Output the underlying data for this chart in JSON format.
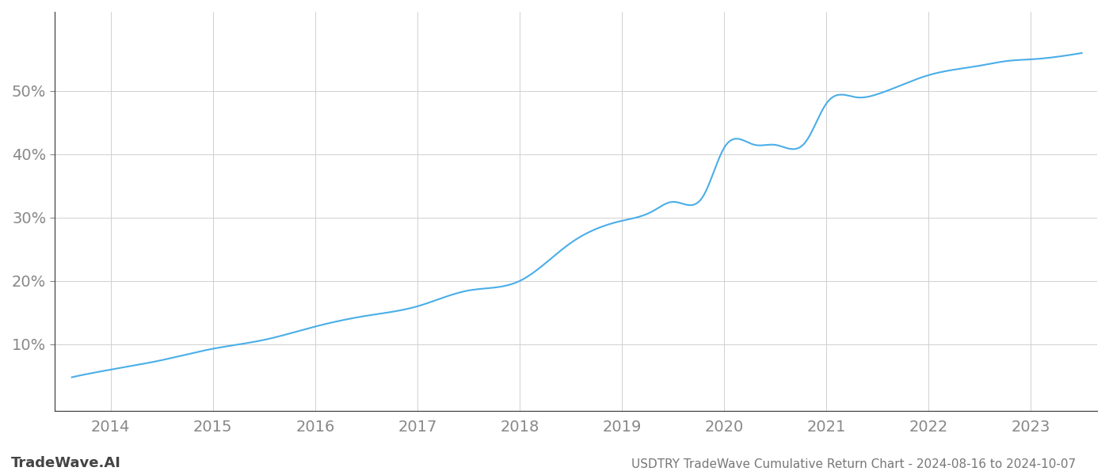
{
  "title": "USDTRY TradeWave Cumulative Return Chart - 2024-08-16 to 2024-10-07",
  "watermark": "TradeWave.AI",
  "line_color": "#4aaee8",
  "background_color": "#ffffff",
  "grid_color": "#d0d0d0",
  "axis_color": "#555555",
  "x_ticks": [
    2014,
    2015,
    2016,
    2017,
    2018,
    2019,
    2020,
    2021,
    2022,
    2023
  ],
  "y_ticks": [
    0.1,
    0.2,
    0.3,
    0.4,
    0.5
  ],
  "y_tick_labels": [
    "10%",
    "20%",
    "30%",
    "40%",
    "50%"
  ],
  "key_x": [
    2013.62,
    2014.0,
    2014.5,
    2015.0,
    2015.5,
    2016.0,
    2016.5,
    2017.0,
    2017.5,
    2018.0,
    2018.5,
    2019.0,
    2019.3,
    2019.5,
    2019.8,
    2020.0,
    2020.3,
    2020.5,
    2020.8,
    2021.0,
    2021.3,
    2021.5,
    2022.0,
    2022.5,
    2022.8,
    2023.0,
    2023.3,
    2023.5
  ],
  "key_y": [
    0.048,
    0.06,
    0.075,
    0.093,
    0.107,
    0.128,
    0.145,
    0.16,
    0.185,
    0.2,
    0.26,
    0.295,
    0.31,
    0.325,
    0.335,
    0.41,
    0.415,
    0.415,
    0.42,
    0.48,
    0.49,
    0.495,
    0.525,
    0.54,
    0.548,
    0.55,
    0.555,
    0.56
  ],
  "xlim": [
    2013.45,
    2023.65
  ],
  "ylim": [
    -0.005,
    0.625
  ],
  "line_width": 1.5,
  "title_fontsize": 11,
  "tick_fontsize": 14,
  "watermark_fontsize": 13,
  "title_color": "#777777",
  "tick_color": "#888888",
  "watermark_color": "#444444",
  "spine_color": "#333333"
}
